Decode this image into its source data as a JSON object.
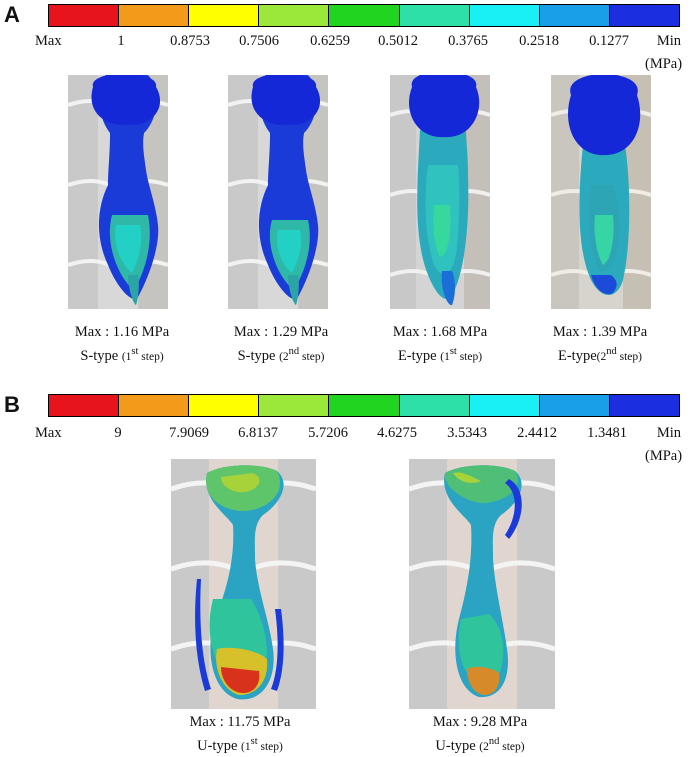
{
  "panels": [
    {
      "letter": "A",
      "colorbar": {
        "colors": [
          "#e8141b",
          "#f39a1b",
          "#ffff00",
          "#9be83a",
          "#20d420",
          "#2de0a8",
          "#18f0f5",
          "#199fe8",
          "#1b2fe0"
        ],
        "max_label": "Max",
        "min_label": "Min",
        "unit": "(MPa)",
        "ticks": [
          "1",
          "0.8753",
          "0.7506",
          "0.6259",
          "0.5012",
          "0.3765",
          "0.2518",
          "0.1277"
        ]
      },
      "models": [
        {
          "max": "Max : 1.16 MPa",
          "type": "S-type",
          "step_open": "(",
          "step_num": "1",
          "step_sup": "st",
          "step_tail": " step)"
        },
        {
          "max": "Max : 1.29 MPa",
          "type": "S-type",
          "step_open": "(",
          "step_num": "2",
          "step_sup": "nd",
          "step_tail": " step)"
        },
        {
          "max": "Max : 1.68 MPa",
          "type": "E-type",
          "step_open": "(",
          "step_num": "1",
          "step_sup": "st",
          "step_tail": " step)"
        },
        {
          "max": "Max : 1.39 MPa",
          "type": "E-type",
          "step_open": "(",
          "step_num": "2",
          "step_sup": "nd",
          "step_tail": " step)"
        }
      ]
    },
    {
      "letter": "B",
      "colorbar": {
        "colors": [
          "#e8141b",
          "#f39a1b",
          "#ffff00",
          "#9be83a",
          "#20d420",
          "#2de0a8",
          "#18f0f5",
          "#199fe8",
          "#1b2fe0"
        ],
        "max_label": "Max",
        "min_label": "Min",
        "unit": "(MPa)",
        "ticks": [
          "9",
          "7.9069",
          "6.8137",
          "5.7206",
          "4.6275",
          "3.5343",
          "2.4412",
          "1.3481"
        ]
      },
      "models": [
        {
          "max": "Max : 11.75 MPa",
          "type": "U-type",
          "step_open": "(",
          "step_num": "1",
          "step_sup": "st",
          "step_tail": " step)"
        },
        {
          "max": "Max : 9.28 MPa",
          "type": "U-type",
          "step_open": "(",
          "step_num": "2",
          "step_sup": "nd",
          "step_tail": " step)"
        }
      ]
    }
  ]
}
